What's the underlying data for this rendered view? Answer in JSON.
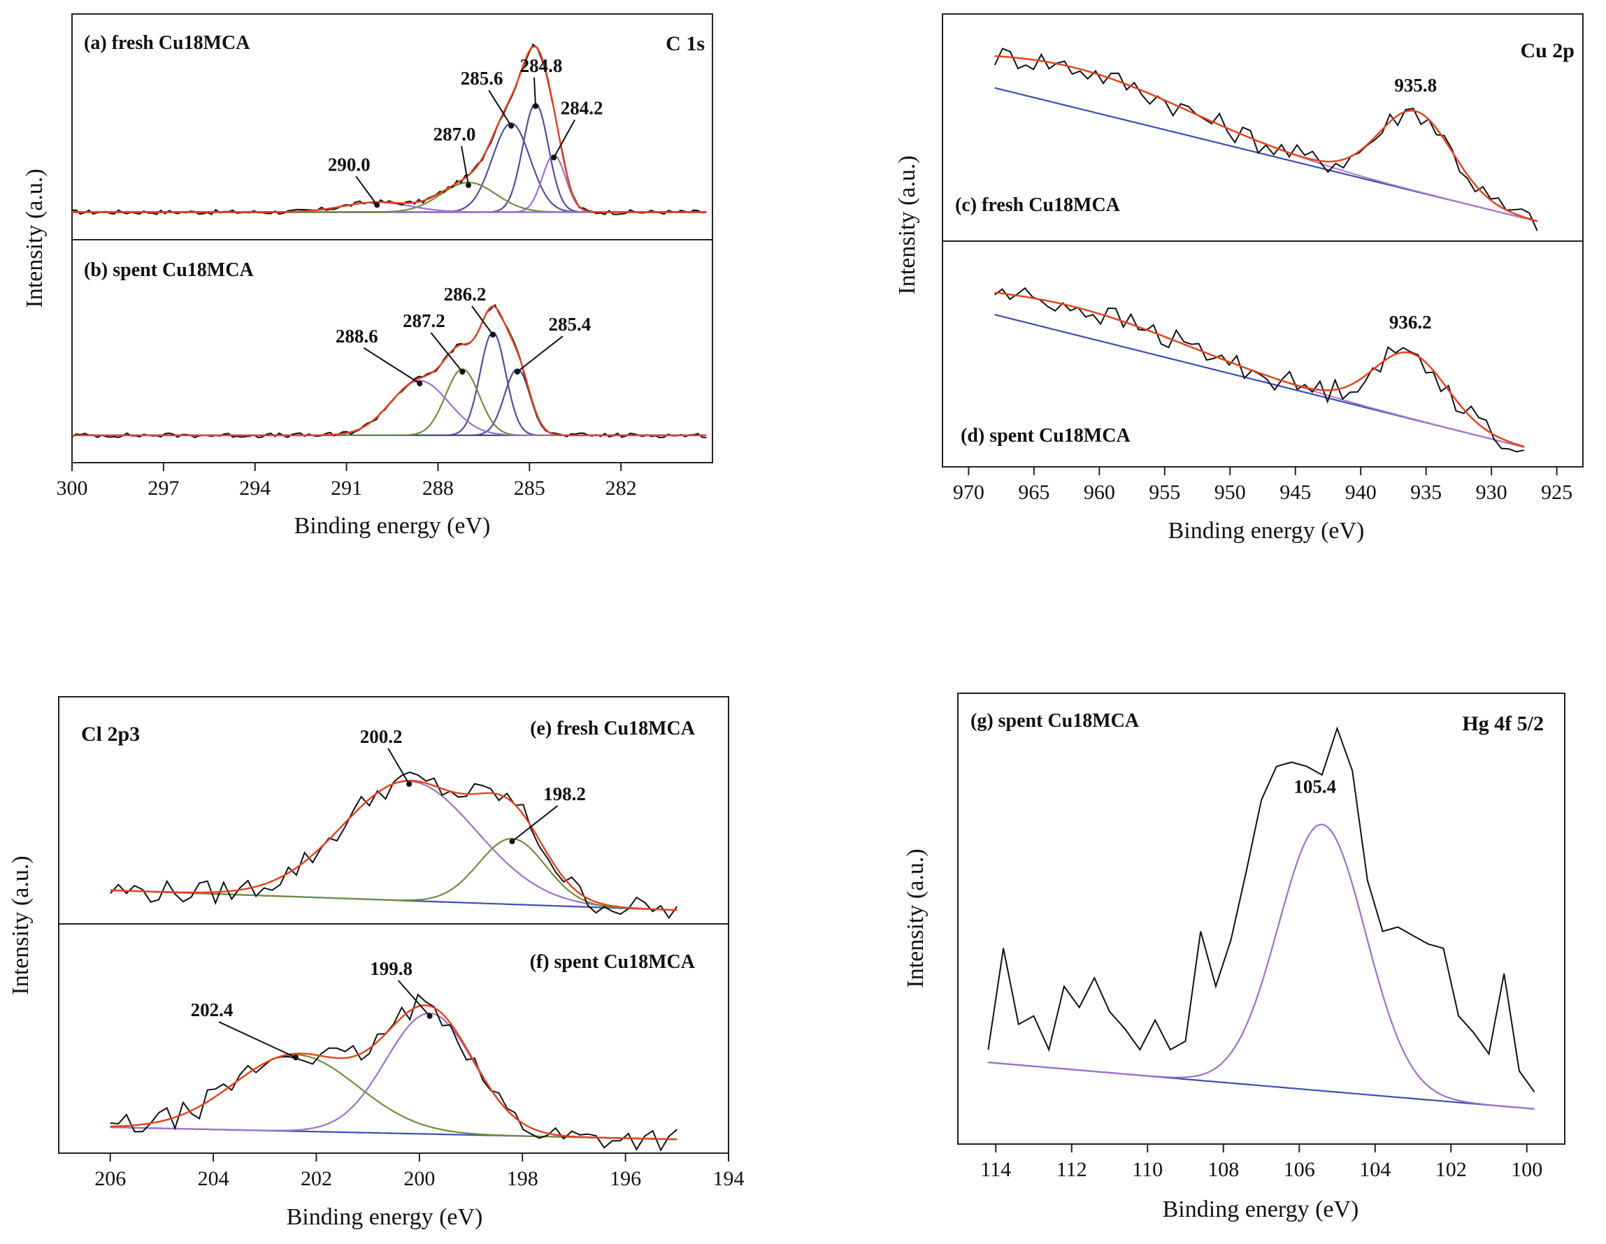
{
  "figure": {
    "colors": {
      "raw": "#111111",
      "envelope": "#e8421e",
      "peak_blue": "#4f4fa0",
      "peak_purple": "#9f70c9",
      "peak_green": "#6e8f3c",
      "baseline": "#3b4fb2",
      "background_curve": "#b07ac8"
    }
  },
  "chart_data": [
    {
      "id": "c1s",
      "type": "line",
      "region": "C 1s",
      "xlabel": "Binding energy (eV)",
      "ylabel": "Intensity (a.u.)",
      "xlim": [
        300,
        279
      ],
      "xticks": [
        300,
        297,
        294,
        291,
        288,
        285,
        282
      ],
      "ylim": [
        0,
        1
      ],
      "panels": [
        {
          "label": "(a) fresh Cu18MCA",
          "x_range": [
            300,
            279.2
          ],
          "baseline": 0.09,
          "peaks": [
            {
              "center": 284.8,
              "height": 0.55,
              "width": 0.42,
              "color": "peak_blue",
              "label": "284.8"
            },
            {
              "center": 285.6,
              "height": 0.45,
              "width": 0.62,
              "color": "peak_blue",
              "label": "285.6"
            },
            {
              "center": 284.2,
              "height": 0.29,
              "width": 0.38,
              "color": "peak_purple",
              "label": "284.2"
            },
            {
              "center": 287.0,
              "height": 0.15,
              "width": 0.9,
              "color": "peak_green",
              "label": "287.0"
            },
            {
              "center": 290.0,
              "height": 0.05,
              "width": 1.1,
              "color": "peak_purple",
              "label": "290.0"
            }
          ]
        },
        {
          "label": "(b) spent Cu18MCA",
          "x_range": [
            300,
            279.2
          ],
          "baseline": 0.09,
          "peaks": [
            {
              "center": 286.2,
              "height": 0.53,
              "width": 0.42,
              "color": "peak_blue",
              "label": "286.2"
            },
            {
              "center": 285.4,
              "height": 0.34,
              "width": 0.42,
              "color": "peak_blue",
              "label": "285.4"
            },
            {
              "center": 287.2,
              "height": 0.34,
              "width": 0.55,
              "color": "peak_green",
              "label": "287.2"
            },
            {
              "center": 288.6,
              "height": 0.28,
              "width": 0.95,
              "color": "peak_purple",
              "label": "288.6"
            }
          ]
        }
      ]
    },
    {
      "id": "cu2p",
      "type": "line",
      "region": "Cu 2p",
      "xlabel": "Binding energy (eV)",
      "ylabel": "Intensity (a.u.)",
      "xlim": [
        972,
        923
      ],
      "xticks": [
        970,
        965,
        960,
        955,
        950,
        945,
        940,
        935,
        930,
        925
      ],
      "ylim": [
        0,
        1
      ],
      "panels": [
        {
          "label": "(c) fresh Cu18MCA",
          "x_range": [
            968,
            926.5
          ],
          "baseline_start": 0.72,
          "baseline_end": 0.05,
          "background_hump": {
            "center": 962,
            "height": 0.2,
            "width": 9
          },
          "peaks": [
            {
              "center": 935.8,
              "height": 0.4,
              "width": 2.8,
              "color": "peak_green",
              "label": "935.8"
            }
          ]
        },
        {
          "label": "(d) spent Cu18MCA",
          "x_range": [
            968,
            927.5
          ],
          "baseline_start": 0.72,
          "baseline_end": 0.05,
          "background_hump": {
            "center": 962,
            "height": 0.14,
            "width": 9
          },
          "peaks": [
            {
              "center": 936.2,
              "height": 0.33,
              "width": 2.8,
              "color": "peak_green",
              "label": "936.2"
            }
          ]
        }
      ]
    },
    {
      "id": "cl2p3",
      "type": "line",
      "region": "Cl 2p3",
      "xlabel": "Binding energy (eV)",
      "ylabel": "Intensity (a.u.)",
      "xlim": [
        207,
        194
      ],
      "xticks": [
        206,
        204,
        202,
        200,
        198,
        196,
        194
      ],
      "ylim": [
        0,
        1
      ],
      "panels": [
        {
          "label": "(e) fresh Cu18MCA",
          "x_range": [
            206,
            195
          ],
          "baseline_start": 0.12,
          "baseline_end": 0.02,
          "peaks": [
            {
              "center": 200.2,
              "height": 0.6,
              "width": 1.3,
              "color": "peak_purple",
              "label": "200.2"
            },
            {
              "center": 198.2,
              "height": 0.33,
              "width": 0.65,
              "color": "peak_green",
              "label": "198.2"
            }
          ]
        },
        {
          "label": "(f) spent Cu18MCA",
          "x_range": [
            206,
            195
          ],
          "baseline_start": 0.08,
          "baseline_end": 0.02,
          "peaks": [
            {
              "center": 199.8,
              "height": 0.6,
              "width": 0.85,
              "color": "peak_purple",
              "label": "199.8"
            },
            {
              "center": 202.4,
              "height": 0.38,
              "width": 1.2,
              "color": "peak_green",
              "label": "202.4"
            }
          ]
        }
      ]
    },
    {
      "id": "hg4f",
      "type": "line",
      "region": "Hg 4f 5/2",
      "xlabel": "Binding energy (eV)",
      "ylabel": "Intensity (a.u.)",
      "xlim": [
        115,
        99
      ],
      "xticks": [
        114,
        112,
        110,
        108,
        106,
        104,
        102,
        100
      ],
      "ylim": [
        0,
        1
      ],
      "panels": [
        {
          "label": "(g) spent Cu18MCA",
          "x_range": [
            114.2,
            99.8
          ],
          "baseline_start": 0.17,
          "baseline_end": 0.06,
          "peaks": [
            {
              "center": 105.4,
              "height": 0.63,
              "width": 1.15,
              "color": "peak_purple",
              "label": "105.4"
            }
          ],
          "raw_points": [
            [
              114.2,
              0.2
            ],
            [
              113.8,
              0.44
            ],
            [
              113.4,
              0.26
            ],
            [
              113.0,
              0.28
            ],
            [
              112.6,
              0.2
            ],
            [
              112.2,
              0.35
            ],
            [
              111.8,
              0.3
            ],
            [
              111.4,
              0.37
            ],
            [
              111.0,
              0.29
            ],
            [
              110.6,
              0.25
            ],
            [
              110.2,
              0.2
            ],
            [
              109.8,
              0.27
            ],
            [
              109.4,
              0.2
            ],
            [
              109.0,
              0.22
            ],
            [
              108.6,
              0.48
            ],
            [
              108.2,
              0.35
            ],
            [
              107.8,
              0.46
            ],
            [
              107.4,
              0.62
            ],
            [
              107.0,
              0.79
            ],
            [
              106.6,
              0.87
            ],
            [
              106.2,
              0.88
            ],
            [
              105.8,
              0.87
            ],
            [
              105.4,
              0.85
            ],
            [
              105.0,
              0.96
            ],
            [
              104.6,
              0.86
            ],
            [
              104.2,
              0.6
            ],
            [
              103.8,
              0.48
            ],
            [
              103.4,
              0.49
            ],
            [
              103.0,
              0.47
            ],
            [
              102.6,
              0.45
            ],
            [
              102.2,
              0.44
            ],
            [
              101.8,
              0.28
            ],
            [
              101.4,
              0.24
            ],
            [
              101.0,
              0.19
            ],
            [
              100.6,
              0.38
            ],
            [
              100.2,
              0.15
            ],
            [
              99.8,
              0.1
            ]
          ]
        }
      ]
    }
  ]
}
